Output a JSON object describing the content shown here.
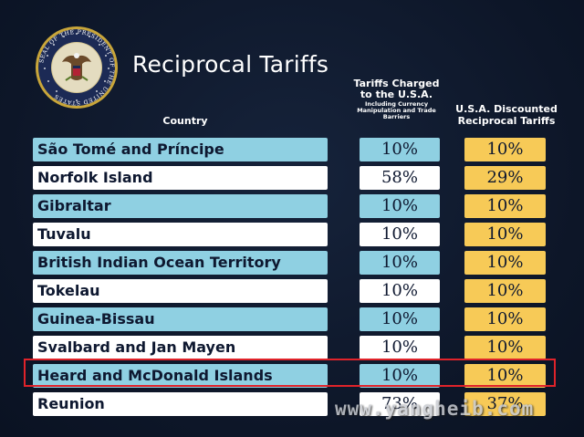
{
  "title": "Reciprocal Tariffs",
  "seal_text": "SEAL OF THE PRESIDENT OF THE UNITED STATES",
  "headers": {
    "country": "Country",
    "charged": "Tariffs Charged to the U.S.A.",
    "charged_sub": "Including Currency Manipulation and Trade Barriers",
    "discount": "U.S.A. Discounted Reciprocal Tariffs"
  },
  "rows": [
    {
      "country": "São Tomé and Príncipe",
      "charged": "10%",
      "discount": "10%",
      "shade": "blue"
    },
    {
      "country": "Norfolk Island",
      "charged": "58%",
      "discount": "29%",
      "shade": "white"
    },
    {
      "country": "Gibraltar",
      "charged": "10%",
      "discount": "10%",
      "shade": "blue"
    },
    {
      "country": "Tuvalu",
      "charged": "10%",
      "discount": "10%",
      "shade": "white"
    },
    {
      "country": "British Indian Ocean Territory",
      "charged": "10%",
      "discount": "10%",
      "shade": "blue"
    },
    {
      "country": "Tokelau",
      "charged": "10%",
      "discount": "10%",
      "shade": "white"
    },
    {
      "country": "Guinea-Bissau",
      "charged": "10%",
      "discount": "10%",
      "shade": "blue"
    },
    {
      "country": "Svalbard and Jan Mayen",
      "charged": "10%",
      "discount": "10%",
      "shade": "white"
    },
    {
      "country": "Heard and McDonald Islands",
      "charged": "10%",
      "discount": "10%",
      "shade": "blue"
    },
    {
      "country": "Reunion",
      "charged": "73%",
      "discount": "37%",
      "shade": "white"
    }
  ],
  "highlighted_row": "Heard and McDonald Islands",
  "watermark": "www.yangheib.com",
  "colors": {
    "background": "#0f1a2e",
    "blue_cell": "#8fd0e2",
    "white_cell": "#ffffff",
    "discount_cell": "#f7ca57",
    "highlight_border": "#e0232a"
  }
}
